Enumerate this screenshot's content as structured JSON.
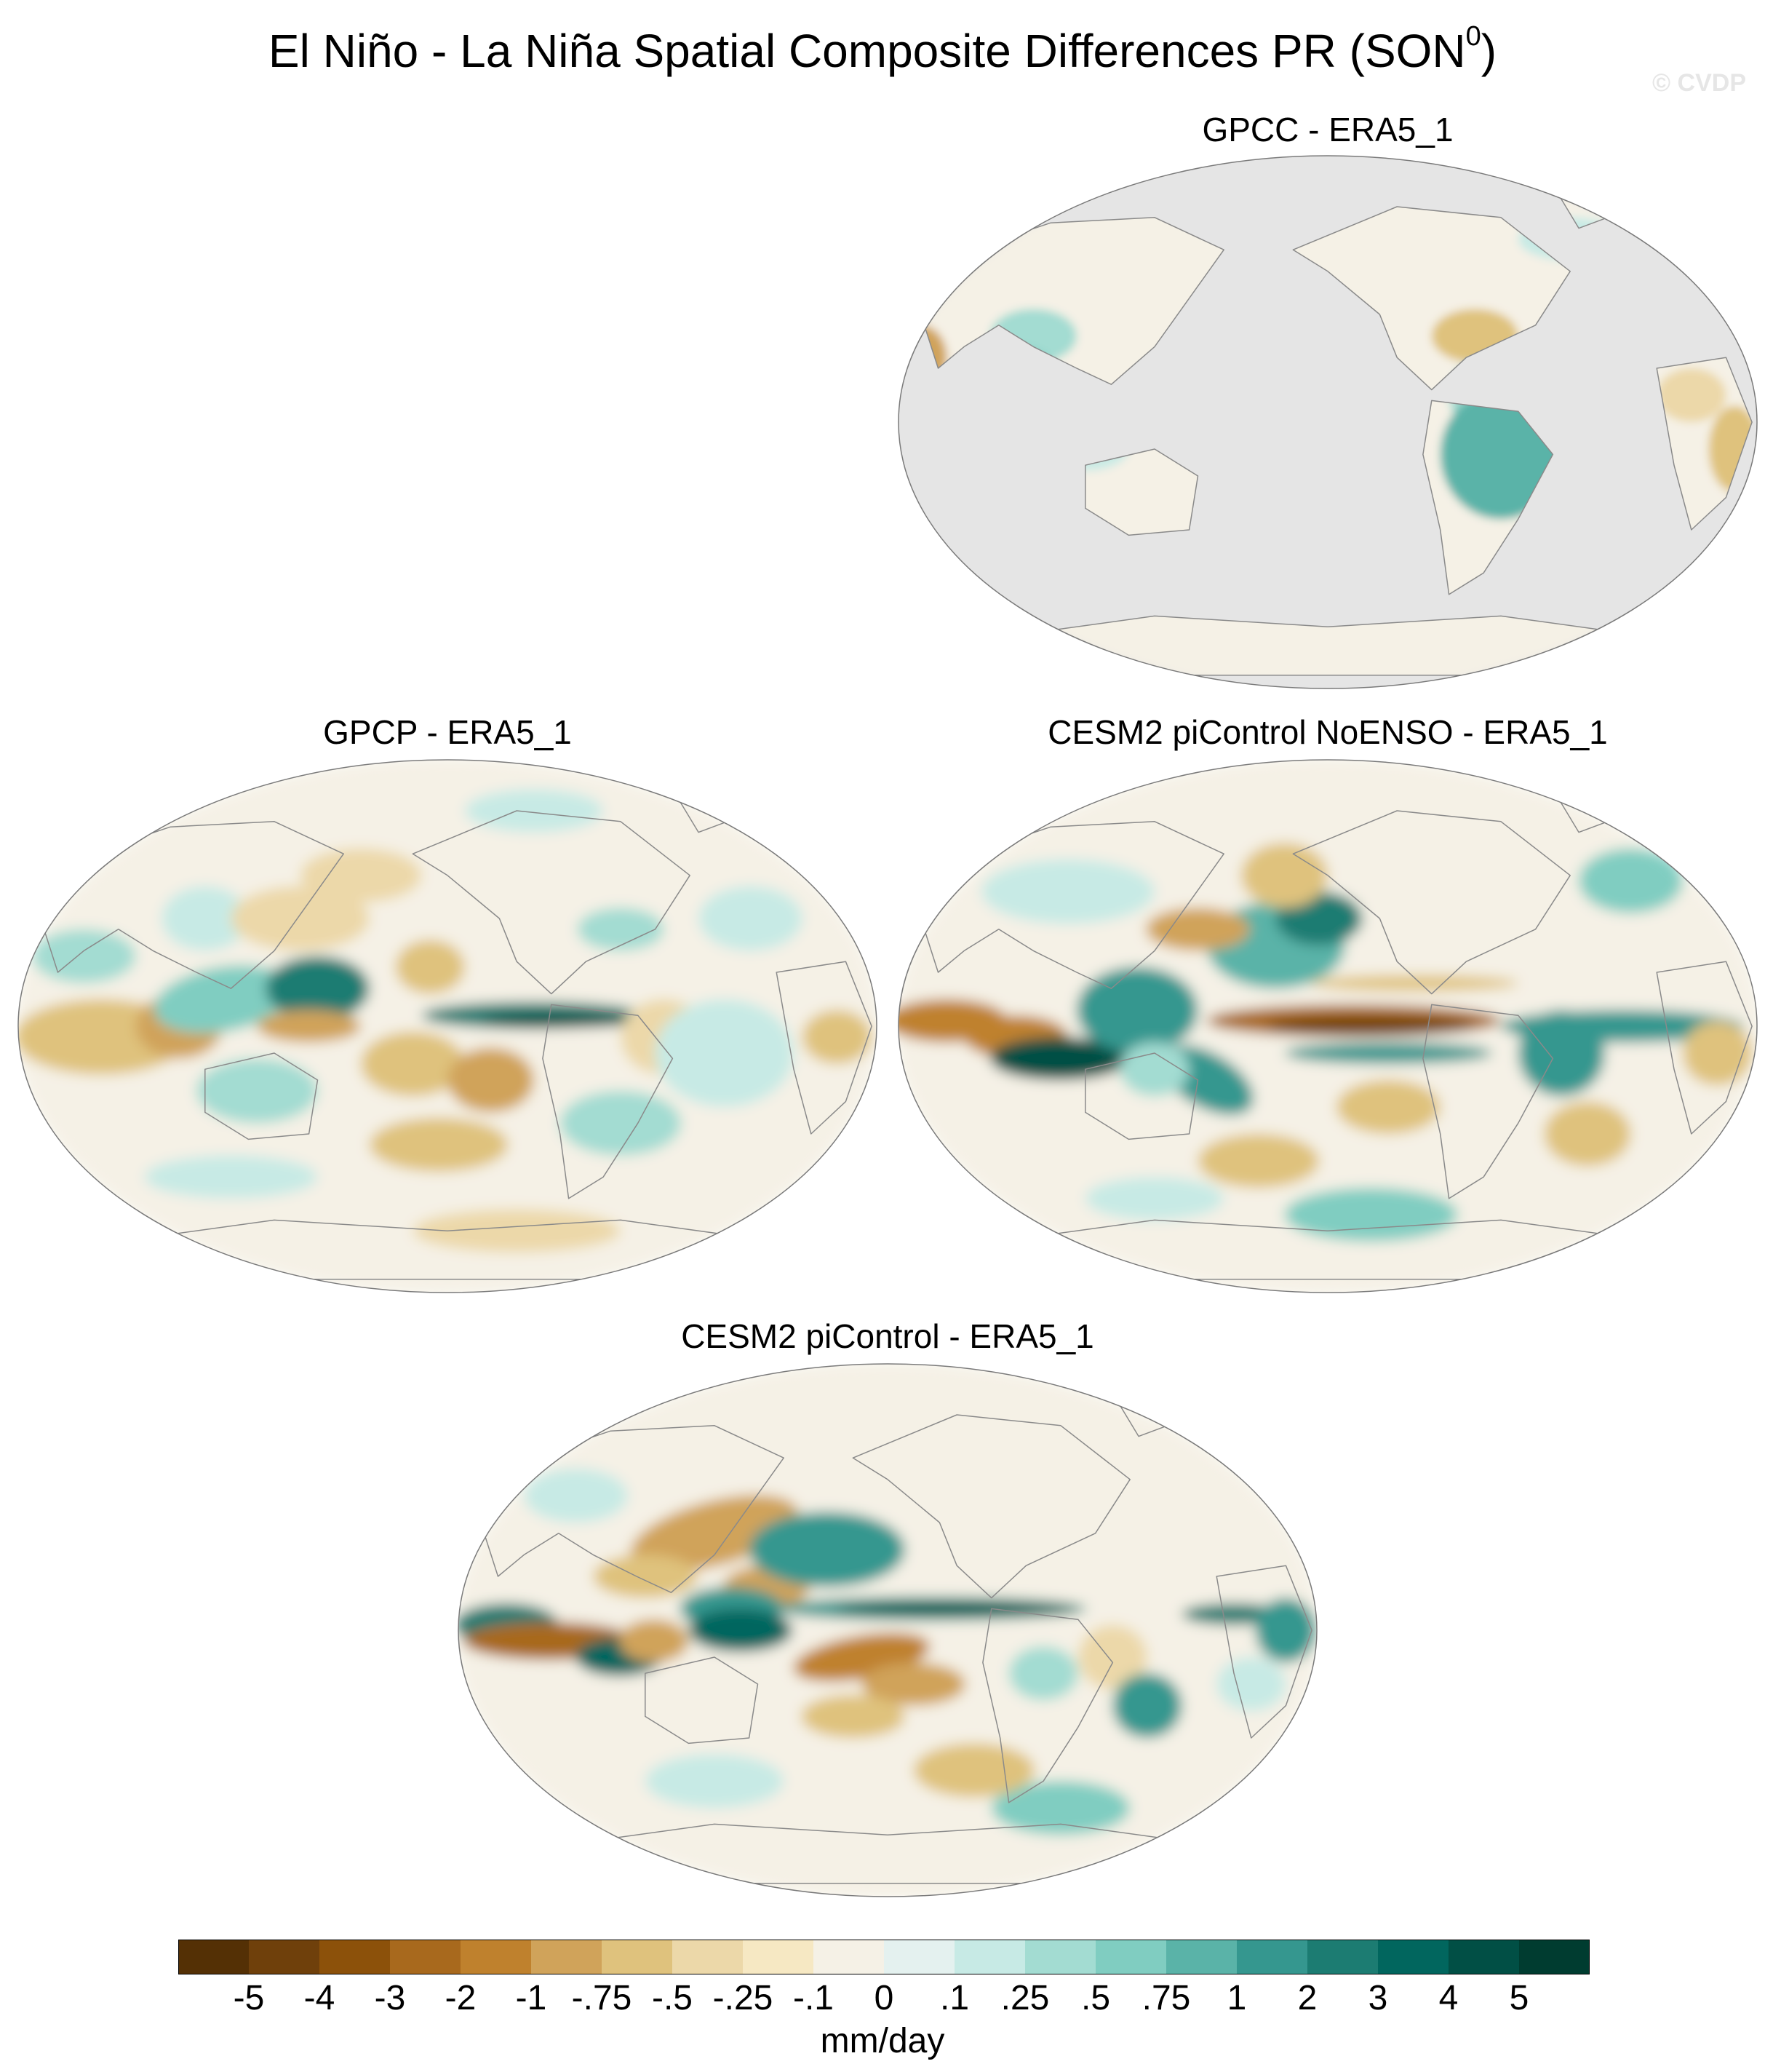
{
  "title": {
    "prefix": "El Niño - La Niña Spatial Composite Differences PR (SON",
    "superscript": "0",
    "suffix": ")"
  },
  "credit": "© CVDP",
  "panels": [
    {
      "title": "GPCC - ERA5_1"
    },
    {
      "title": "GPCP - ERA5_1"
    },
    {
      "title": "CESM2 piControl NoENSO - ERA5_1"
    },
    {
      "title": "CESM2 piControl - ERA5_1"
    }
  ],
  "colors": {
    "missing": "#e5e5e5",
    "coast": "#8a8a8a",
    "outline": "#7a7a7a"
  },
  "colorbar": {
    "units": "mm/day",
    "labels": [
      "-5",
      "-4",
      "-3",
      "-2",
      "-1",
      "-.75",
      "-.5",
      "-.25",
      "-.1",
      "0",
      ".1",
      ".25",
      ".5",
      ".75",
      "1",
      "2",
      "3",
      "4",
      "5"
    ],
    "colors": [
      "#543005",
      "#6f400b",
      "#8c510a",
      "#a8691d",
      "#bf812d",
      "#d0a35a",
      "#dfc27d",
      "#ecd8a9",
      "#f6e8c3",
      "#f5f1e6",
      "#e4f1ef",
      "#c7eae5",
      "#a3dcd2",
      "#80cdc1",
      "#5ab3a8",
      "#35978f",
      "#1c7c72",
      "#01665e",
      "#014f45",
      "#003c30"
    ]
  }
}
